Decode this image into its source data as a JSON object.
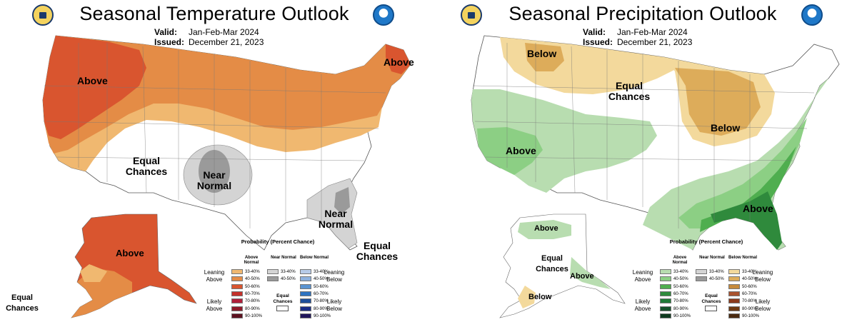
{
  "temperature": {
    "title": "Seasonal Temperature Outlook",
    "valid_label": "Valid:",
    "valid_value": "Jan-Feb-Mar 2024",
    "issued_label": "Issued:",
    "issued_value": "December 21, 2023",
    "regions": {
      "above": "Above",
      "above_ne": "Above",
      "equal": "Equal Chances",
      "near_plains": "Near Normal",
      "near_southeast": "Near Normal",
      "equal_south_fl": "Equal Chances",
      "alaska_above": "Above",
      "alaska_equal": "Equal Chances"
    },
    "legend": {
      "title": "Probability (Percent Chance)",
      "col_above": "Above Normal",
      "col_near": "Near Normal",
      "col_below": "Below Normal",
      "leaning_left": "Leaning Above",
      "likely_left": "Likely Above",
      "leaning_right": "Leaning Below",
      "likely_right": "Likely Below",
      "equal_chances": "Equal Chances",
      "above_rows": [
        "33-40%",
        "40-50%",
        "50-60%",
        "60-70%",
        "70-80%",
        "80-90%",
        "90-100%"
      ],
      "near_rows": [
        "33-40%",
        "40-50%"
      ],
      "below_rows": [
        "33-40%",
        "40-50%",
        "50-60%",
        "60-70%",
        "70-80%",
        "80-90%",
        "90-100%"
      ],
      "above_colors": [
        "#f0b870",
        "#e48c46",
        "#d9552f",
        "#c4312b",
        "#b01f3a",
        "#8e1a2a",
        "#5c1220"
      ],
      "near_colors": [
        "#d4d4d4",
        "#9a9a9a"
      ],
      "below_colors": [
        "#b7cbe8",
        "#8fb2de",
        "#5b94d1",
        "#2f73c0",
        "#1e4f9a",
        "#1b2e86",
        "#20165a"
      ]
    }
  },
  "precipitation": {
    "title": "Seasonal Precipitation Outlook",
    "valid_label": "Valid:",
    "valid_value": "Jan-Feb-Mar 2024",
    "issued_label": "Issued:",
    "issued_value": "December 21, 2023",
    "regions": {
      "below_nw": "Below",
      "equal": "Equal Chances",
      "above_west": "Above",
      "below_greatlakes": "Below",
      "above_southeast": "Above",
      "alaska_above_se": "Above",
      "alaska_equal": "Equal Chances",
      "alaska_above_panhandle": "Above",
      "alaska_below": "Below"
    },
    "legend": {
      "title": "Probability (Percent Chance)",
      "col_above": "Above Normal",
      "col_near": "Near Normal",
      "col_below": "Below Normal",
      "leaning_left": "Leaning Above",
      "likely_left": "Likely Above",
      "leaning_right": "Leaning Below",
      "likely_right": "Likely Below",
      "equal_chances": "Equal Chances",
      "above_rows": [
        "33-40%",
        "40-50%",
        "50-60%",
        "60-70%",
        "70-80%",
        "80-90%",
        "90-100%"
      ],
      "near_rows": [
        "33-40%",
        "40-50%"
      ],
      "below_rows": [
        "33-40%",
        "40-50%",
        "50-60%",
        "60-70%",
        "70-80%",
        "80-90%",
        "90-100%"
      ],
      "above_colors": [
        "#b8ddb0",
        "#8ccf84",
        "#4fae4f",
        "#2f8a3c",
        "#1f7a36",
        "#15512a",
        "#0f3a1f"
      ],
      "near_colors": [
        "#d4d4d4",
        "#9a9a9a"
      ],
      "below_colors": [
        "#f3d99c",
        "#ddac5a",
        "#c68a3c",
        "#a9532f",
        "#8c3b1c",
        "#6e3a12",
        "#4a2a10"
      ]
    }
  }
}
